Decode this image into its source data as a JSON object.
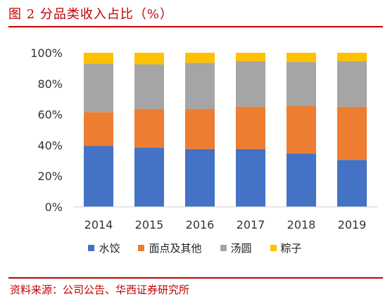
{
  "figure": {
    "title": "图 2    分品类收入占比（%）",
    "source": "资料来源：公司公告、华西证券研究所"
  },
  "chart_data": {
    "type": "bar",
    "stacked": true,
    "categories": [
      "2014",
      "2015",
      "2016",
      "2017",
      "2018",
      "2019"
    ],
    "series": [
      {
        "name": "水饺",
        "color": "#4472c4",
        "values": [
          39.5,
          38.5,
          37.5,
          37.5,
          34.5,
          30.5
        ]
      },
      {
        "name": "面点及其他",
        "color": "#ed7d31",
        "values": [
          22,
          25,
          26,
          27.5,
          31,
          34.5
        ]
      },
      {
        "name": "汤圆",
        "color": "#a5a5a5",
        "values": [
          31.5,
          29,
          30,
          29.5,
          28.5,
          29.5
        ]
      },
      {
        "name": "粽子",
        "color": "#ffc000",
        "values": [
          7,
          7.5,
          6.5,
          5.5,
          6,
          5.5
        ]
      }
    ],
    "ylim": [
      0,
      100
    ],
    "yticks": [
      "0%",
      "20%",
      "40%",
      "60%",
      "80%",
      "100%"
    ],
    "grid": false,
    "legend_position": "bottom"
  }
}
